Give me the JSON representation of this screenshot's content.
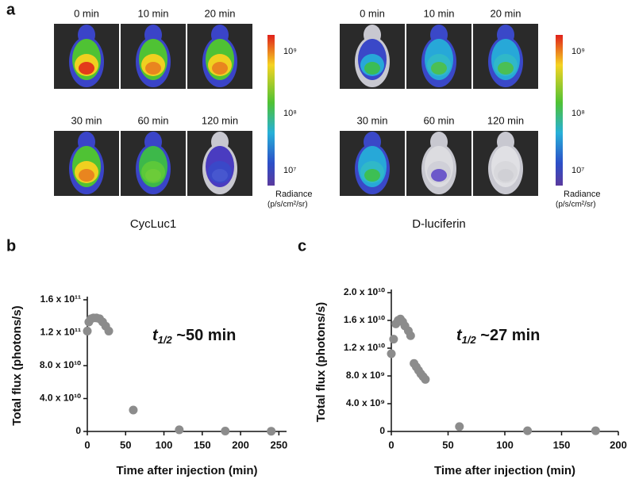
{
  "panel_a": {
    "label": "a",
    "groups": [
      {
        "caption": "CycLuc1",
        "times": [
          "0 min",
          "10 min",
          "20 min",
          "30 min",
          "60 min",
          "120 min"
        ],
        "colorbar_ticks": [
          "10⁹",
          "10⁸",
          "10⁷"
        ],
        "colorbar_title": "Radiance",
        "colorbar_units": "(p/s/cm²/sr)"
      },
      {
        "caption": "D-luciferin",
        "times": [
          "0 min",
          "10 min",
          "20 min",
          "30 min",
          "60 min",
          "120 min"
        ],
        "colorbar_ticks": [
          "10⁹",
          "10⁸",
          "10⁷"
        ],
        "colorbar_title": "Radiance",
        "colorbar_units": "(p/s/cm²/sr)"
      }
    ]
  },
  "chart_data": [
    {
      "type": "scatter",
      "panel_label": "b",
      "color": "#8c8c8c",
      "x_label": "Time after injection (min)",
      "y_label": "Total flux (photons/s)",
      "annotation": {
        "symbol": "t",
        "subscript": "1/2",
        "text": " ~50 min"
      },
      "x": [
        0,
        2,
        5,
        8,
        12,
        16,
        20,
        24,
        28,
        60,
        120,
        180,
        240
      ],
      "values": [
        122000000000,
        133000000000,
        137000000000,
        138000000000,
        138000000000,
        137000000000,
        133000000000,
        128000000000,
        122000000000,
        26000000000,
        2000000000,
        500000000,
        300000000
      ],
      "xlim": [
        0,
        260
      ],
      "xticks": [
        0,
        50,
        100,
        150,
        200,
        250
      ],
      "ylim": [
        0,
        160000000000
      ],
      "yticks": [
        0,
        {
          "value": 40000000000,
          "label": "4.0 x 10¹⁰"
        },
        {
          "value": 80000000000,
          "label": "8.0 x 10¹⁰"
        },
        {
          "value": 120000000000,
          "label": "1.2 x 10¹¹"
        },
        {
          "value": 160000000000,
          "label": "1.6 x 10¹¹"
        }
      ]
    },
    {
      "type": "scatter",
      "panel_label": "c",
      "color": "#8c8c8c",
      "x_label": "Time after injection (min)",
      "y_label": "Total flux (photons/s)",
      "annotation": {
        "symbol": "t",
        "subscript": "1/2",
        "text": " ~27 min"
      },
      "x": [
        0,
        2,
        4,
        6,
        8,
        10,
        12,
        15,
        17,
        20,
        22,
        24,
        26,
        28,
        30,
        60,
        120,
        180
      ],
      "values": [
        11200000000,
        13300000000,
        15500000000,
        16000000000,
        16200000000,
        15800000000,
        15200000000,
        14500000000,
        13800000000,
        9800000000,
        9300000000,
        8800000000,
        8300000000,
        7900000000,
        7500000000,
        700000000,
        100000000,
        100000000
      ],
      "xlim": [
        0,
        200
      ],
      "xticks": [
        0,
        50,
        100,
        150,
        200
      ],
      "ylim": [
        0,
        20000000000
      ],
      "yticks": [
        0,
        {
          "value": 4000000000,
          "label": "4.0 x 10⁹"
        },
        {
          "value": 8000000000,
          "label": "8.0 x 10⁹"
        },
        {
          "value": 12000000000,
          "label": "1.2 x 10¹⁰"
        },
        {
          "value": 16000000000,
          "label": "1.6 x 10¹⁰"
        },
        {
          "value": 20000000000,
          "label": "2.0 x 10¹⁰"
        }
      ]
    }
  ]
}
